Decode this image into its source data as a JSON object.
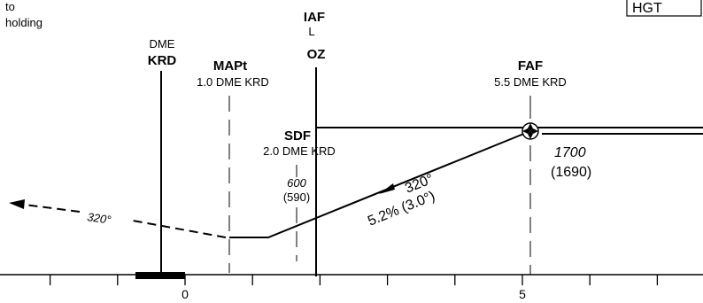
{
  "notes": {
    "holding_line1": "to",
    "holding_line2": "holding",
    "hgt_box": "HGT"
  },
  "fixes": {
    "dme": {
      "line1": "DME",
      "line2": "KRD"
    },
    "mapt": {
      "name": "MAPt",
      "dist": "1.0 DME KRD"
    },
    "iaf": {
      "line1": "IAF",
      "line2": "L",
      "line3": "OZ"
    },
    "sdf": {
      "name": "SDF",
      "dist": "2.0 DME KRD",
      "min_alt": "600",
      "min_alt_qfe": "(590)"
    },
    "faf": {
      "name": "FAF",
      "dist": "5.5 DME KRD",
      "alt": "1700",
      "alt_qfe": "(1690)"
    }
  },
  "tracks": {
    "missed": "320°",
    "final_track": "320°",
    "final_gradient": "5.2% (3.0°)"
  },
  "scale": {
    "labels": [
      {
        "value": "0"
      },
      {
        "value": "5"
      }
    ]
  }
}
